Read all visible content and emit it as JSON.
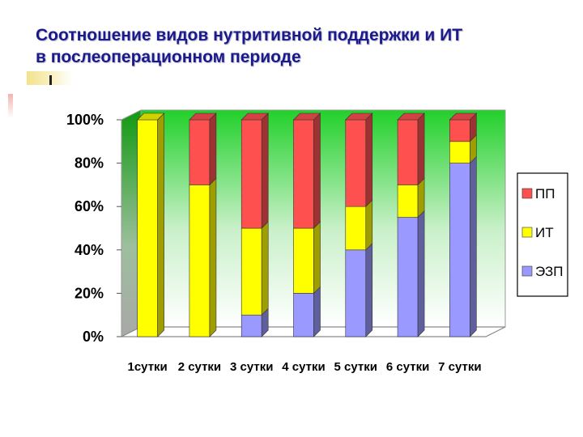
{
  "slide": {
    "title_line1": "Соотношение видов нутритивной поддержки и ИТ",
    "title_line2": "в послеоперационном периоде"
  },
  "chart_data": {
    "type": "bar",
    "stacked": "percent",
    "categories": [
      "1сутки",
      "2 сутки",
      "3 сутки",
      "4 сутки",
      "5 сутки",
      "6 сутки",
      "7 сутки"
    ],
    "series": [
      {
        "name": "ЭЗП",
        "color": "#9999ff",
        "values": [
          0,
          0,
          10,
          20,
          40,
          55,
          80
        ]
      },
      {
        "name": "ИТ",
        "color": "#ffff00",
        "values": [
          100,
          70,
          40,
          30,
          20,
          15,
          10
        ]
      },
      {
        "name": "ПП",
        "color": "#ff5050",
        "values": [
          0,
          30,
          50,
          50,
          40,
          30,
          10
        ]
      }
    ],
    "y_ticks": [
      "0%",
      "20%",
      "40%",
      "60%",
      "80%",
      "100%"
    ],
    "ylim": [
      0,
      100
    ],
    "legend_position": "right",
    "legend_order": [
      "ПП",
      "ИТ",
      "ЭЗП"
    ],
    "back_wall": "green gradient"
  }
}
